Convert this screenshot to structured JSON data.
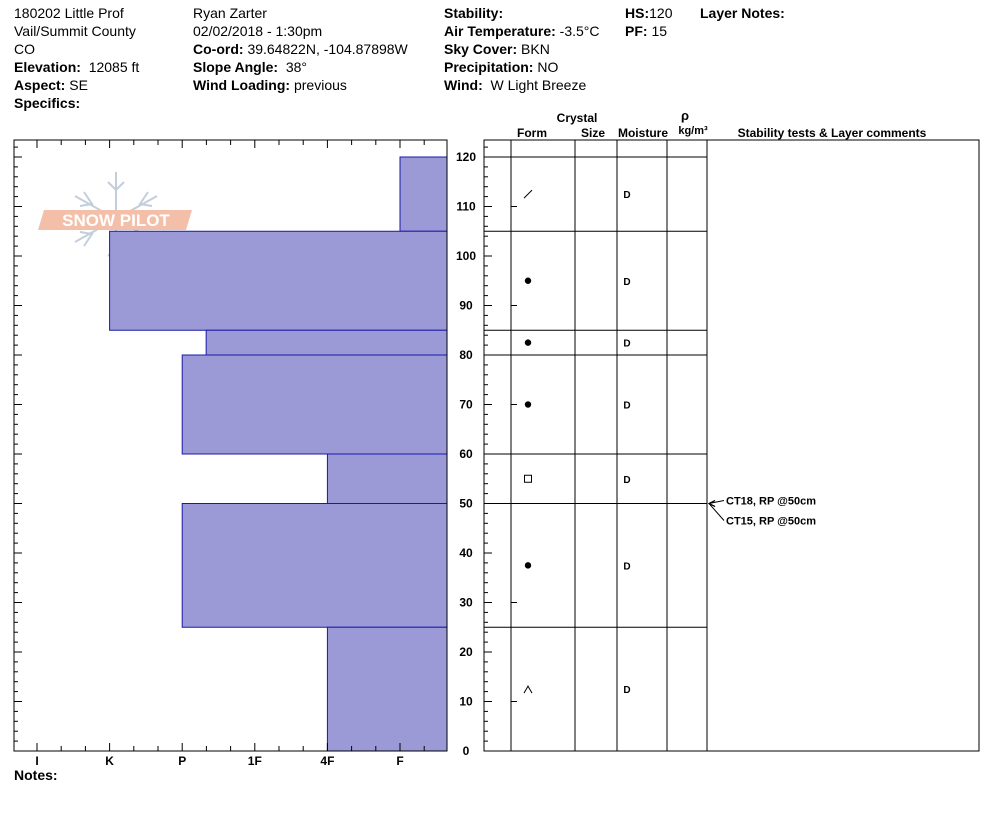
{
  "header": {
    "col1": {
      "site": "180202 Little Prof",
      "county": "Vail/Summit County",
      "state": "CO",
      "elevation_label": "Elevation:",
      "elevation": "12085 ft",
      "aspect_label": "Aspect:",
      "aspect": "SE",
      "specifics_label": "Specifics:",
      "specifics": ""
    },
    "col2": {
      "observer": "Ryan Zarter",
      "datetime": "02/02/2018 - 1:30pm",
      "coord_label": "Co-ord:",
      "coord": "39.64822N, -104.87898W",
      "slope_label": "Slope Angle:",
      "slope": "38°",
      "wind_loading_label": "Wind Loading:",
      "wind_loading": "previous"
    },
    "col3": {
      "stability_label": "Stability:",
      "stability": "",
      "air_temp_label": "Air Temperature:",
      "air_temp": "-3.5°C",
      "sky_label": "Sky Cover:",
      "sky": "BKN",
      "precip_label": "Precipitation:",
      "precip": "NO",
      "wind_label": "Wind:",
      "wind": "W Light Breeze"
    },
    "col4": {
      "hs_label": "HS:",
      "hs": "120",
      "pf_label": "PF:",
      "pf": "15"
    },
    "layer_notes_label": "Layer Notes:",
    "notes_label": "Notes:"
  },
  "logo_text": "SNOW PILOT",
  "columns": {
    "crystal": "Crystal",
    "form": "Form",
    "size": "Size",
    "moisture": "Moisture",
    "rho": "ρ",
    "density_unit": "kg/m³",
    "stability": "Stability tests & Layer comments"
  },
  "colors": {
    "hardness_fill": "#9b9ad6",
    "hardness_stroke": "#1a1aa6"
  },
  "chart_data": {
    "type": "snow_profile",
    "y_axis": {
      "label": "",
      "range": [
        0,
        120
      ],
      "ticks": [
        0,
        10,
        20,
        30,
        40,
        50,
        60,
        70,
        80,
        90,
        100,
        110,
        120
      ]
    },
    "hardness_scale": [
      "I",
      "K",
      "P",
      "1F",
      "4F",
      "F"
    ],
    "layers": [
      {
        "bottom": 105,
        "top": 120,
        "hardness_index": 5.0,
        "form": "facet-slash",
        "moisture": "D"
      },
      {
        "bottom": 85,
        "top": 105,
        "hardness_index": 1.0,
        "form": "round-dot",
        "moisture": "D"
      },
      {
        "bottom": 80,
        "top": 85,
        "hardness_index": 2.33,
        "form": "round-dot",
        "moisture": "D"
      },
      {
        "bottom": 60,
        "top": 80,
        "hardness_index": 2.0,
        "form": "round-dot",
        "moisture": "D"
      },
      {
        "bottom": 50,
        "top": 60,
        "hardness_index": 4.0,
        "form": "square",
        "moisture": "D"
      },
      {
        "bottom": 25,
        "top": 50,
        "hardness_index": 2.0,
        "form": "round-dot",
        "moisture": "D"
      },
      {
        "bottom": 0,
        "top": 25,
        "hardness_index": 4.0,
        "form": "depth-hoar",
        "moisture": "D"
      }
    ],
    "stability_tests": [
      {
        "depth": 50,
        "text": "CT18, RP @50cm"
      },
      {
        "depth": 50,
        "text": "CT15, RP @50cm"
      }
    ]
  }
}
